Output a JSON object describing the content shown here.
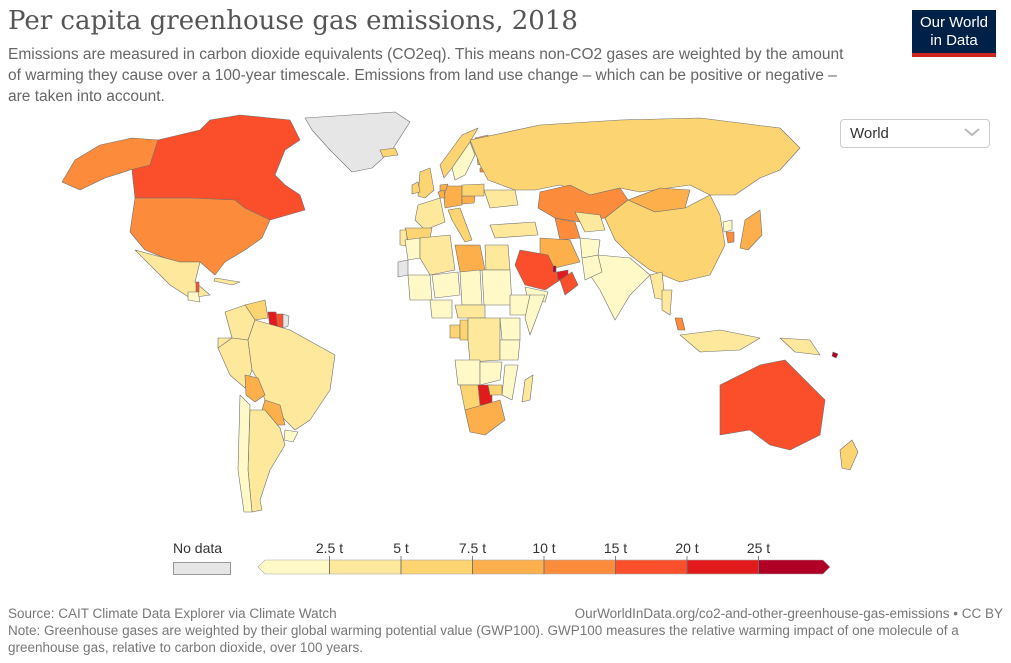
{
  "header": {
    "title": "Per capita greenhouse gas emissions, 2018",
    "subtitle": "Emissions are measured in carbon dioxide equivalents (CO2eq). This means non-CO2 gases are weighted by the amount of warming they cause over a 100-year timescale. Emissions from land use change – which can be positive or negative – are taken into account.",
    "logo_line1": "Our World",
    "logo_line2": "in Data"
  },
  "controls": {
    "region_selected": "World",
    "region_icon": "chevron-down-icon"
  },
  "colors": {
    "brand_navy": "#002147",
    "brand_red": "#ce261e",
    "no_data": "#e6e6e6",
    "border": "#6f6f6f"
  },
  "legend": {
    "no_data_label": "No data",
    "unit": "t",
    "bins": [
      {
        "min": null,
        "max": 2.5,
        "color": "#fff9c8"
      },
      {
        "min": 2.5,
        "max": 5,
        "color": "#fde89c"
      },
      {
        "min": 5,
        "max": 7.5,
        "color": "#fdd472"
      },
      {
        "min": 7.5,
        "max": 10,
        "color": "#fcaf4b"
      },
      {
        "min": 10,
        "max": 15,
        "color": "#fc8b3b"
      },
      {
        "min": 15,
        "max": 20,
        "color": "#fb4e2b"
      },
      {
        "min": 20,
        "max": 25,
        "color": "#e31a1c"
      },
      {
        "min": 25,
        "max": null,
        "color": "#b10026"
      }
    ],
    "tick_labels": [
      "2.5 t",
      "5 t",
      "7.5 t",
      "10 t",
      "15 t",
      "20 t",
      "25 t"
    ]
  },
  "chart_data": {
    "type": "choropleth",
    "title": "Per capita greenhouse gas emissions, 2018",
    "unit": "t",
    "year": 2018,
    "region": "World",
    "countries": [
      {
        "name": "Canada",
        "bin": "15-20 t"
      },
      {
        "name": "United States",
        "bin": "10-15 t"
      },
      {
        "name": "Alaska (US)",
        "bin": "10-15 t"
      },
      {
        "name": "Greenland",
        "bin": "No data"
      },
      {
        "name": "Iceland",
        "bin": "5-7.5 t"
      },
      {
        "name": "Mexico",
        "bin": "2.5-5 t"
      },
      {
        "name": "Belize",
        "bin": "15-20 t"
      },
      {
        "name": "Guatemala",
        "bin": "<2.5 t"
      },
      {
        "name": "Cuba",
        "bin": "2.5-5 t"
      },
      {
        "name": "Venezuela",
        "bin": "5-7.5 t"
      },
      {
        "name": "Colombia",
        "bin": "2.5-5 t"
      },
      {
        "name": "Ecuador",
        "bin": "2.5-5 t"
      },
      {
        "name": "Peru",
        "bin": "2.5-5 t"
      },
      {
        "name": "Guyana",
        "bin": "20-25 t"
      },
      {
        "name": "Suriname",
        "bin": "15-20 t"
      },
      {
        "name": "French Guiana",
        "bin": "No data"
      },
      {
        "name": "Brazil",
        "bin": "2.5-5 t"
      },
      {
        "name": "Bolivia",
        "bin": "7.5-10 t"
      },
      {
        "name": "Paraguay",
        "bin": "7.5-10 t"
      },
      {
        "name": "Argentina",
        "bin": "2.5-5 t"
      },
      {
        "name": "Chile",
        "bin": "<2.5 t"
      },
      {
        "name": "Uruguay",
        "bin": "<2.5 t"
      },
      {
        "name": "United Kingdom",
        "bin": "5-7.5 t"
      },
      {
        "name": "Ireland",
        "bin": "5-7.5 t"
      },
      {
        "name": "Norway",
        "bin": "5-7.5 t"
      },
      {
        "name": "Sweden",
        "bin": "<2.5 t"
      },
      {
        "name": "Finland",
        "bin": "7.5-10 t"
      },
      {
        "name": "Estonia",
        "bin": "10-15 t"
      },
      {
        "name": "France",
        "bin": "2.5-5 t"
      },
      {
        "name": "Spain",
        "bin": "5-7.5 t"
      },
      {
        "name": "Portugal",
        "bin": "2.5-5 t"
      },
      {
        "name": "Germany",
        "bin": "7.5-10 t"
      },
      {
        "name": "Netherlands",
        "bin": "7.5-10 t"
      },
      {
        "name": "Belgium",
        "bin": "7.5-10 t"
      },
      {
        "name": "Czechia",
        "bin": "7.5-10 t"
      },
      {
        "name": "Poland",
        "bin": "5-7.5 t"
      },
      {
        "name": "Italy",
        "bin": "5-7.5 t"
      },
      {
        "name": "Ukraine",
        "bin": "2.5-5 t"
      },
      {
        "name": "Turkey",
        "bin": "2.5-5 t"
      },
      {
        "name": "Russia",
        "bin": "5-7.5 t"
      },
      {
        "name": "Kazakhstan",
        "bin": "10-15 t"
      },
      {
        "name": "Uzbekistan",
        "bin": "2.5-5 t"
      },
      {
        "name": "Turkmenistan",
        "bin": "10-15 t"
      },
      {
        "name": "Mongolia",
        "bin": "7.5-10 t"
      },
      {
        "name": "China",
        "bin": "5-7.5 t"
      },
      {
        "name": "Japan",
        "bin": "7.5-10 t"
      },
      {
        "name": "South Korea",
        "bin": "10-15 t"
      },
      {
        "name": "North Korea",
        "bin": "<2.5 t"
      },
      {
        "name": "Iran",
        "bin": "7.5-10 t"
      },
      {
        "name": "Saudi Arabia",
        "bin": "15-20 t"
      },
      {
        "name": "Qatar",
        "bin": "25+ t"
      },
      {
        "name": "United Arab Emirates",
        "bin": "20-25 t"
      },
      {
        "name": "Oman",
        "bin": "15-20 t"
      },
      {
        "name": "Yemen",
        "bin": "<2.5 t"
      },
      {
        "name": "India",
        "bin": "<2.5 t"
      },
      {
        "name": "Pakistan",
        "bin": "<2.5 t"
      },
      {
        "name": "Afghanistan",
        "bin": "<2.5 t"
      },
      {
        "name": "Myanmar",
        "bin": "2.5-5 t"
      },
      {
        "name": "Thailand",
        "bin": "2.5-5 t"
      },
      {
        "name": "Malaysia",
        "bin": "10-15 t"
      },
      {
        "name": "Indonesia",
        "bin": "2.5-5 t"
      },
      {
        "name": "Papua New Guinea",
        "bin": "2.5-5 t"
      },
      {
        "name": "Australia",
        "bin": "15-20 t"
      },
      {
        "name": "New Zealand",
        "bin": "5-7.5 t"
      },
      {
        "name": "Solomon Islands",
        "bin": "25+ t"
      },
      {
        "name": "Western Sahara",
        "bin": "No data"
      },
      {
        "name": "Morocco",
        "bin": "<2.5 t"
      },
      {
        "name": "Algeria",
        "bin": "2.5-5 t"
      },
      {
        "name": "Libya",
        "bin": "7.5-10 t"
      },
      {
        "name": "Egypt",
        "bin": "2.5-5 t"
      },
      {
        "name": "Mali",
        "bin": "<2.5 t"
      },
      {
        "name": "Niger",
        "bin": "<2.5 t"
      },
      {
        "name": "Chad",
        "bin": "<2.5 t"
      },
      {
        "name": "Sudan",
        "bin": "<2.5 t"
      },
      {
        "name": "Ethiopia",
        "bin": "<2.5 t"
      },
      {
        "name": "Somalia",
        "bin": "<2.5 t"
      },
      {
        "name": "Nigeria",
        "bin": "<2.5 t"
      },
      {
        "name": "Central African Republic",
        "bin": "2.5-5 t"
      },
      {
        "name": "Gabon",
        "bin": "5-7.5 t"
      },
      {
        "name": "Congo",
        "bin": "5-7.5 t"
      },
      {
        "name": "DR Congo",
        "bin": "2.5-5 t"
      },
      {
        "name": "Kenya",
        "bin": "<2.5 t"
      },
      {
        "name": "Tanzania",
        "bin": "<2.5 t"
      },
      {
        "name": "Angola",
        "bin": "<2.5 t"
      },
      {
        "name": "Zambia",
        "bin": "<2.5 t"
      },
      {
        "name": "Mozambique",
        "bin": "<2.5 t"
      },
      {
        "name": "Namibia",
        "bin": "5-7.5 t"
      },
      {
        "name": "Botswana",
        "bin": "20-25 t"
      },
      {
        "name": "Zimbabwe",
        "bin": "5-7.5 t"
      },
      {
        "name": "South Africa",
        "bin": "7.5-10 t"
      },
      {
        "name": "Madagascar",
        "bin": "2.5-5 t"
      }
    ]
  },
  "footer": {
    "source": "Source: CAIT Climate Data Explorer via Climate Watch",
    "url_text": "OurWorldInData.org/co2-and-other-greenhouse-gas-emissions",
    "license_separator": " • ",
    "license": "CC BY",
    "note": "Note: Greenhouse gases are weighted by their global warming potential value (GWP100). GWP100 measures the relative warming impact of one molecule of a greenhouse gas, relative to carbon dioxide, over 100 years."
  }
}
